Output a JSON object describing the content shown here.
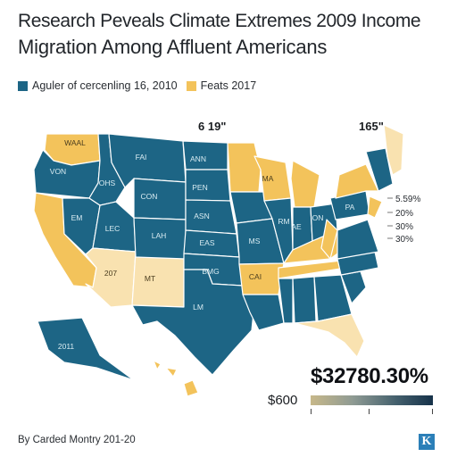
{
  "title": {
    "line1": "Research Peveals Climate Extremes 2009 Income",
    "line2": "Migration Among Affluent Americans"
  },
  "legend": {
    "items": [
      {
        "label": "Aguler of cercenling 16, 2010",
        "color": "#1d6585"
      },
      {
        "label": "Feats 2017",
        "color": "#f3c35b"
      }
    ]
  },
  "colors": {
    "blue": "#1d6585",
    "blue_light": "#2e7d97",
    "yellow": "#f3c35b",
    "cream": "#f9e2b0",
    "light": "#fbeccb",
    "border": "#ffffff"
  },
  "map": {
    "corner_labels": {
      "left": "6 19\"",
      "right": "165\""
    },
    "side_scale": [
      "5.59%",
      "20%",
      "30%",
      "30%"
    ],
    "states": {
      "wa": "WAAL",
      "or": "VON",
      "ca": "",
      "nv": "EM",
      "id": "OHS",
      "mt": "FAI",
      "wy": "CON",
      "ut": "LEC",
      "az": "207",
      "nm": "MT",
      "co": "LAH",
      "nd": "ANN",
      "sd": "PEN",
      "ne": "ASN",
      "ks": "EAS",
      "ok": "BMG",
      "tx": "LM",
      "mn": "",
      "ia": "",
      "mo": "MS",
      "ar": "",
      "la": "",
      "wi": "MA",
      "il": "RM",
      "mi": "",
      "in": "AE",
      "oh": "ON",
      "ky": "",
      "tn": "",
      "ms": "",
      "al": "",
      "ga": "",
      "fl": "",
      "sc": "",
      "nc": "",
      "va": "",
      "wv": "",
      "pa": "PA",
      "ny": "",
      "me": "",
      "ak": "2011"
    },
    "extra_labels": [
      "CAI"
    ]
  },
  "scale": {
    "big_value": "$32780.30%",
    "small_value": "$600",
    "gradient": [
      "#c7b88a",
      "#8e9a93",
      "#44606d",
      "#16324a"
    ]
  },
  "footer": {
    "source": "By Carded Montry 201-20",
    "logo": "K"
  }
}
